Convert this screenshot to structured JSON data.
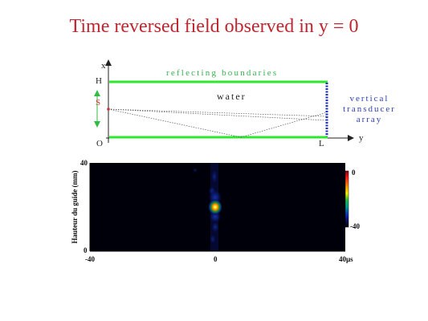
{
  "title": "Time  reversed field observed in y = 0",
  "diagram": {
    "axis_x_label": "x",
    "axis_y_label": "y",
    "top_label": "H",
    "origin_label": "O",
    "source_label": "S",
    "end_label": "L",
    "boundaries_label": "reflecting boundaries",
    "medium_label": "water",
    "array_label_lines": [
      "vertical",
      "transducer",
      "array"
    ],
    "colors": {
      "boundary": "#2ee82e",
      "array": "#1f2fbf",
      "source": "#d33333",
      "arrow": "#33bb44"
    }
  },
  "heatmap": {
    "ylabel": "Hauteur du guide (mm)",
    "y_ticks": [
      "40",
      "0"
    ],
    "x_ticks": [
      "-40",
      "0",
      "40"
    ],
    "x_unit": "µs",
    "colorbar_ticks": [
      "0",
      "-40"
    ]
  },
  "chart_data": {
    "type": "heatmap",
    "title": "",
    "xlabel": "",
    "ylabel": "Hauteur du guide (mm)",
    "x_unit": "µs",
    "xlim": [
      -40,
      40
    ],
    "ylim": [
      0,
      40
    ],
    "colorbar_range": [
      -40,
      0
    ],
    "background_level": -40,
    "focal_spot": {
      "x": 0,
      "y": 20,
      "level": 0
    }
  }
}
